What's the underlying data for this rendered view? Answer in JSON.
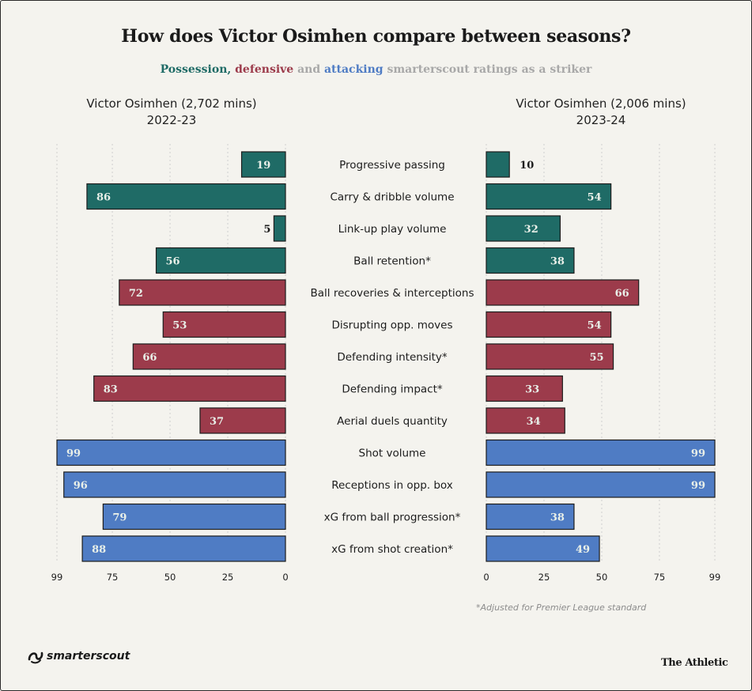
{
  "title": "How does Victor Osimhen compare between seasons?",
  "subtitle": {
    "possession": "Possession",
    "comma": ",",
    "defensive": "defensive",
    "and": "and",
    "attacking": "attacking",
    "rest": "smarterscout ratings as a striker"
  },
  "left_player": {
    "name": "Victor Osimhen (2,702 mins)",
    "season": "2022-23"
  },
  "right_player": {
    "name": "Victor Osimhen (2,006 mins)",
    "season": "2023-24"
  },
  "footnote": "*Adjusted for Premier League standard",
  "brand_left": "smarterscout",
  "brand_right": "The Athletic",
  "colors": {
    "possession": "#1f6b66",
    "defensive": "#9c3b4b",
    "attacking": "#4f7cc4",
    "gridline": "#cfcfcf"
  },
  "chart_data": {
    "type": "bar",
    "orientation": "horizontal-diverging",
    "categories": [
      "Progressive passing",
      "Carry & dribble volume",
      "Link-up play volume",
      "Ball retention*",
      "Ball recoveries & interceptions",
      "Disrupting opp. moves",
      "Defending intensity*",
      "Defending impact*",
      "Aerial duels quantity",
      "Shot volume",
      "Receptions in opp. box",
      "xG from ball progression*",
      "xG from shot creation*"
    ],
    "groups": [
      "possession",
      "possession",
      "possession",
      "possession",
      "defensive",
      "defensive",
      "defensive",
      "defensive",
      "defensive",
      "attacking",
      "attacking",
      "attacking",
      "attacking"
    ],
    "series": [
      {
        "name": "Victor Osimhen (2,702 mins) 2022-23",
        "values": [
          19,
          86,
          5,
          56,
          72,
          53,
          66,
          83,
          37,
          99,
          96,
          79,
          88
        ]
      },
      {
        "name": "Victor Osimhen (2,006 mins) 2023-24",
        "values": [
          10,
          54,
          32,
          38,
          66,
          54,
          55,
          33,
          34,
          99,
          99,
          38,
          49
        ]
      }
    ],
    "xlim": [
      0,
      99
    ],
    "ticks_left": [
      "99",
      "75",
      "50",
      "25",
      "0"
    ],
    "ticks_right": [
      "0",
      "25",
      "50",
      "75",
      "99"
    ],
    "tick_values": [
      0,
      25,
      50,
      75,
      99
    ],
    "grid": true
  }
}
